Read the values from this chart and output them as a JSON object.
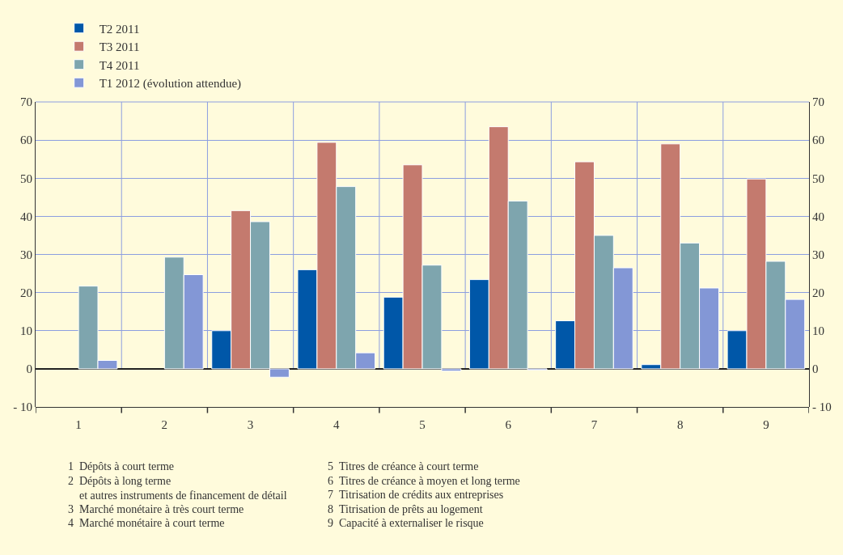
{
  "chart_data": {
    "type": "bar",
    "categories": [
      "1",
      "2",
      "3",
      "4",
      "5",
      "6",
      "7",
      "8",
      "9"
    ],
    "series": [
      {
        "name": "T2 2011",
        "color": "#0057a8",
        "values": [
          null,
          null,
          10,
          26,
          18.8,
          23.4,
          12.6,
          1.1,
          10
        ]
      },
      {
        "name": "T3 2011",
        "color": "#c47a6e",
        "values": [
          null,
          null,
          41.5,
          59.4,
          53.5,
          63.5,
          54.3,
          59,
          49.8
        ]
      },
      {
        "name": "T4 2011",
        "color": "#7ea5ae",
        "values": [
          21.7,
          29.3,
          38.6,
          47.8,
          27.2,
          44,
          35,
          33,
          28.2
        ]
      },
      {
        "name": "T1 2012 (évolution attendue)",
        "color": "#8397d6",
        "values": [
          2.2,
          24.7,
          -2.2,
          4.2,
          -0.6,
          -0.3,
          26.5,
          21.2,
          18.2
        ]
      }
    ],
    "ylim": [
      -10,
      70
    ],
    "yticks": [
      {
        "value": -10,
        "label": "- 10"
      },
      0,
      10,
      20,
      30,
      40,
      50,
      60,
      70
    ],
    "y2lim": [
      -10,
      70
    ],
    "y2ticks": [
      {
        "value": -10,
        "label": "- 10"
      },
      0,
      10,
      20,
      30,
      40,
      50,
      60,
      70
    ],
    "grid": true,
    "legend": "top left",
    "annotations": [
      "1  Dépôts à court terme",
      "2  Dépôts à long terme\n    et autres instruments de financement de détail",
      "3  Marché monétaire à très court terme",
      "4  Marché monétaire à court terme",
      "5  Titres de créance à court terme",
      "6  Titres de créance à moyen et long terme",
      "7  Titrisation de crédits aux entreprises",
      "8  Titrisation de prêts au logement",
      "9  Capacité à externaliser le risque"
    ]
  }
}
